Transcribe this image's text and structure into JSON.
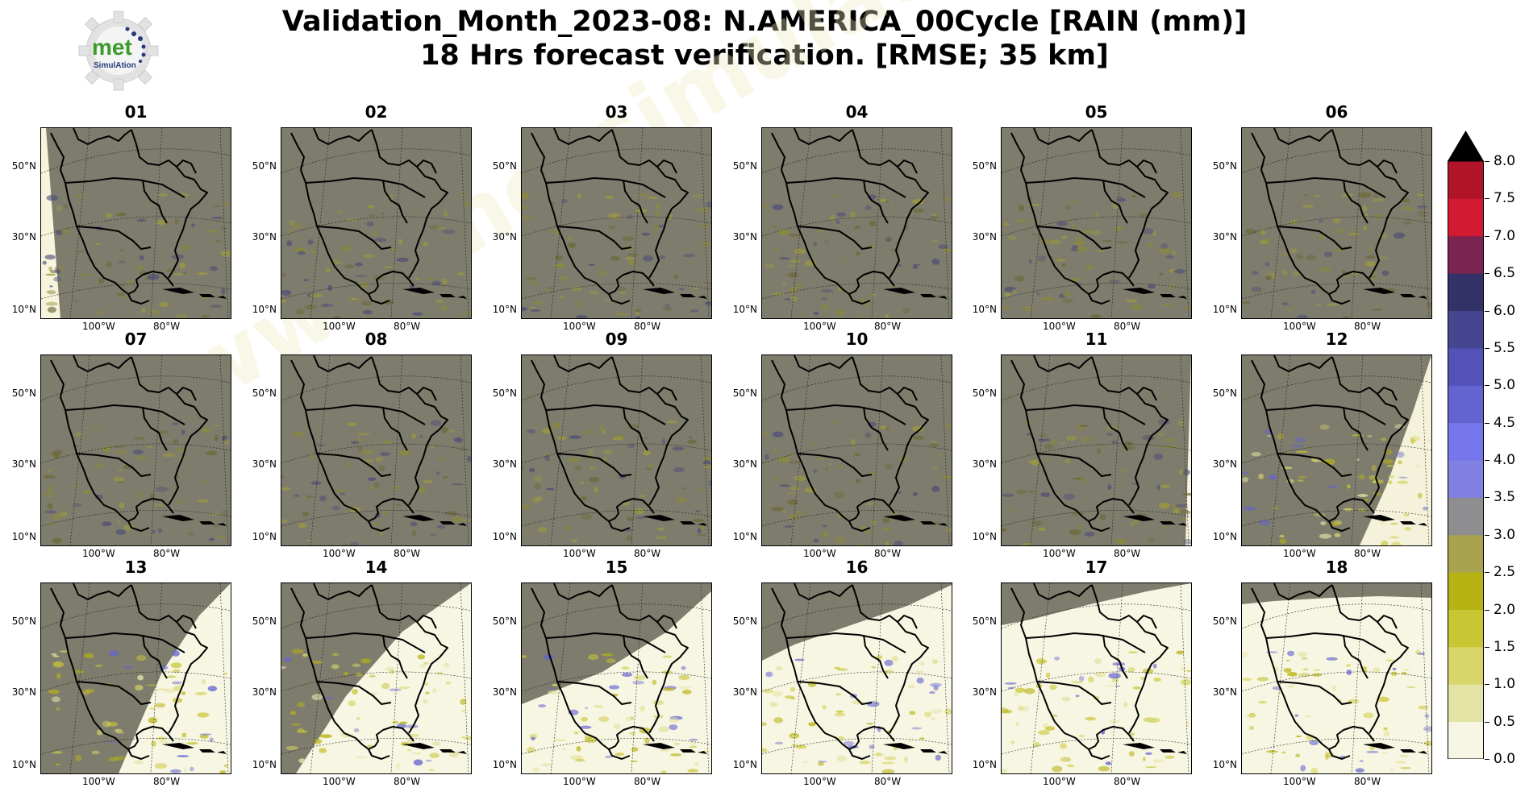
{
  "title": {
    "line1": "Validation_Month_2023-08: N.AMERICA_00Cycle [RAIN (mm)]",
    "line2": "18 Hrs forecast verification.  [RMSE; 35 km]"
  },
  "logo": {
    "text_top": "met",
    "text_bottom": "SimulAtion"
  },
  "watermark": "www.metsimulation.com",
  "axis": {
    "lat_labels": [
      "50°N",
      "30°N",
      "10°N"
    ],
    "lon_labels": [
      "100°W",
      "80°W"
    ]
  },
  "panels": [
    {
      "label": "01",
      "coverage": "full",
      "shadow": "west-strip"
    },
    {
      "label": "02",
      "coverage": "full",
      "shadow": "none"
    },
    {
      "label": "03",
      "coverage": "full",
      "shadow": "none"
    },
    {
      "label": "04",
      "coverage": "full",
      "shadow": "none"
    },
    {
      "label": "05",
      "coverage": "full",
      "shadow": "none"
    },
    {
      "label": "06",
      "coverage": "full",
      "shadow": "none"
    },
    {
      "label": "07",
      "coverage": "full",
      "shadow": "none"
    },
    {
      "label": "08",
      "coverage": "full",
      "shadow": "none"
    },
    {
      "label": "09",
      "coverage": "full",
      "shadow": "none"
    },
    {
      "label": "10",
      "coverage": "full",
      "shadow": "none"
    },
    {
      "label": "11",
      "coverage": "full",
      "shadow": "east-strip"
    },
    {
      "label": "12",
      "coverage": "partial",
      "shadow": "east-wedge"
    },
    {
      "label": "13",
      "coverage": "partial",
      "shadow": "west-half"
    },
    {
      "label": "14",
      "coverage": "partial",
      "shadow": "west-diagonal"
    },
    {
      "label": "15",
      "coverage": "partial",
      "shadow": "northwest"
    },
    {
      "label": "16",
      "coverage": "partial",
      "shadow": "north-west-corner"
    },
    {
      "label": "17",
      "coverage": "partial",
      "shadow": "north-band"
    },
    {
      "label": "18",
      "coverage": "partial",
      "shadow": "north-thin"
    }
  ],
  "colorbar": {
    "ticks": [
      "0.0",
      "0.5",
      "1.0",
      "1.5",
      "2.0",
      "2.5",
      "3.0",
      "3.5",
      "4.0",
      "4.5",
      "5.0",
      "5.5",
      "6.0",
      "6.5",
      "7.0",
      "7.5",
      "8.0"
    ],
    "colors": [
      "#f7f6e4",
      "#e4e3a6",
      "#d8d66a",
      "#c9c634",
      "#b8b314",
      "#a9a24e",
      "#8e8e90",
      "#8080e0",
      "#7676ec",
      "#6464d0",
      "#5252b8",
      "#464690",
      "#323268",
      "#7c2450",
      "#d21a32",
      "#b01428",
      "#7a0c14"
    ],
    "overflow_color": "#000000"
  }
}
